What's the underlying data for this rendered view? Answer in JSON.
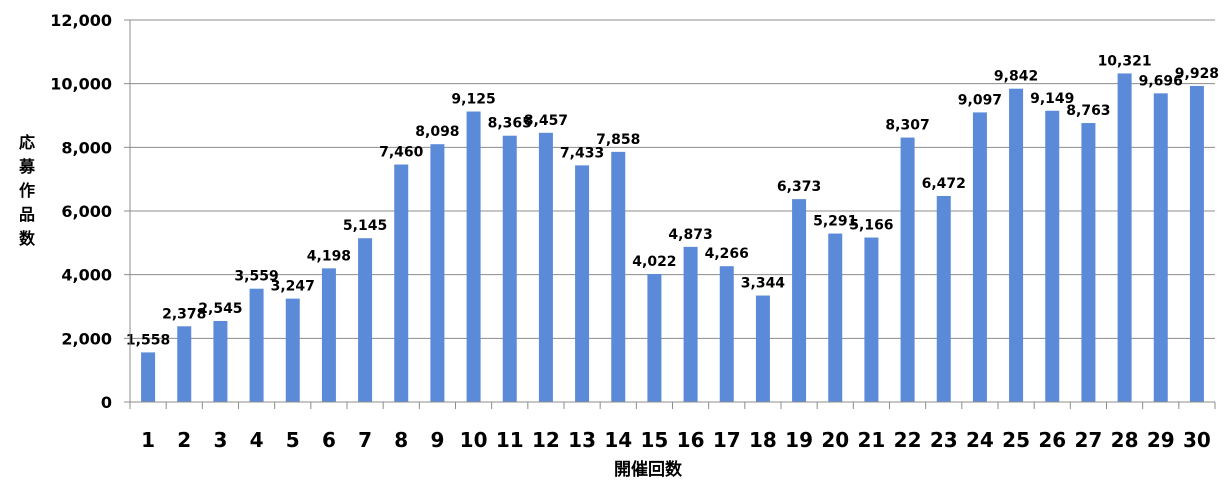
{
  "chart_data": {
    "type": "bar",
    "title": "",
    "xlabel": "開催回数",
    "ylabel": "応募作品数",
    "ylim": [
      0,
      12000
    ],
    "yticks": [
      "0",
      "2,000",
      "4,000",
      "6,000",
      "8,000",
      "10,000",
      "12,000"
    ],
    "grid": true,
    "bar_color": "#5b8ad8",
    "categories": [
      "1",
      "2",
      "3",
      "4",
      "5",
      "6",
      "7",
      "8",
      "9",
      "10",
      "11",
      "12",
      "13",
      "14",
      "15",
      "16",
      "17",
      "18",
      "19",
      "20",
      "21",
      "22",
      "23",
      "24",
      "25",
      "26",
      "27",
      "28",
      "29",
      "30"
    ],
    "values": [
      1558,
      2378,
      2545,
      3559,
      3247,
      4198,
      5145,
      7460,
      8098,
      9125,
      8365,
      8457,
      7433,
      7858,
      4022,
      4873,
      4266,
      3344,
      6373,
      5291,
      5166,
      8307,
      6472,
      9097,
      9842,
      9149,
      8763,
      10321,
      9696,
      9928
    ],
    "data_labels": [
      "1,558",
      "2,378",
      "2,545",
      "3,559",
      "3,247",
      "4,198",
      "5,145",
      "7,460",
      "8,098",
      "9,125",
      "8,365",
      "8,457",
      "7,433",
      "7,858",
      "4,022",
      "4,873",
      "4,266",
      "3,344",
      "6,373",
      "5,291",
      "5,166",
      "8,307",
      "6,472",
      "9,097",
      "9,842",
      "9,149",
      "8,763",
      "10,321",
      "9,696",
      "9,928"
    ]
  }
}
